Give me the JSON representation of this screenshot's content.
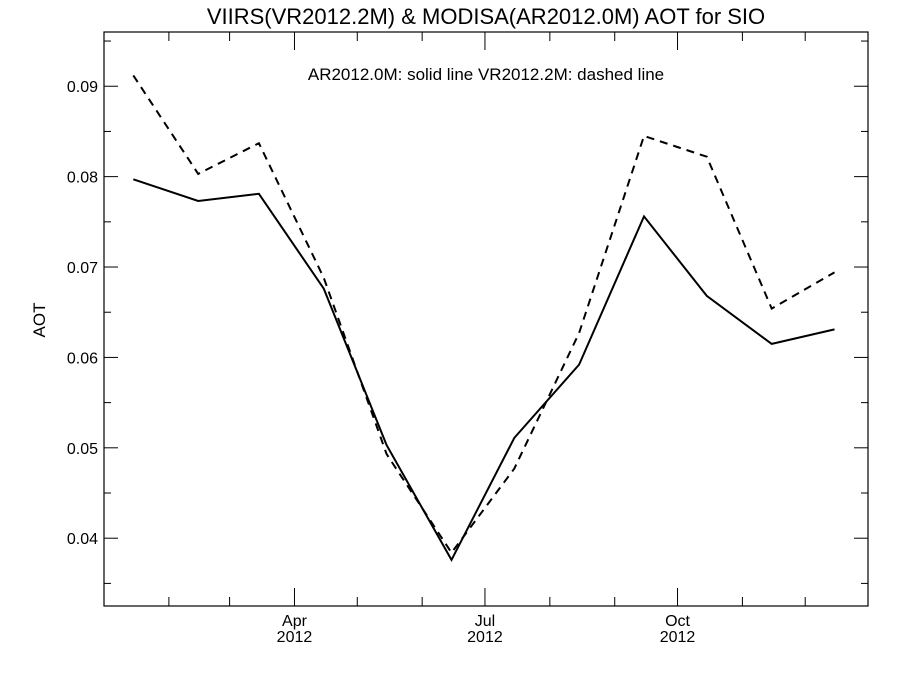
{
  "chart_data": {
    "type": "line",
    "title": "VIIRS(VR2012.2M) & MODISA(AR2012.0M)  AOT for SIO",
    "annotation": "AR2012.0M: solid line   VR2012.2M: dashed line",
    "xlabel": "",
    "ylabel": "AOT",
    "x_dates": [
      "2012-01-15",
      "2012-02-15",
      "2012-03-15",
      "2012-04-15",
      "2012-05-15",
      "2012-06-15",
      "2012-07-15",
      "2012-08-15",
      "2012-09-15",
      "2012-10-15",
      "2012-11-15",
      "2012-12-15"
    ],
    "xlim": [
      "2012-01-01",
      "2012-12-31"
    ],
    "x_ticks": [
      {
        "date": "2012-04-01",
        "label": "Apr",
        "sublabel": "2012"
      },
      {
        "date": "2012-07-01",
        "label": "Jul",
        "sublabel": "2012"
      },
      {
        "date": "2012-10-01",
        "label": "Oct",
        "sublabel": "2012"
      }
    ],
    "ylim": [
      0.0325,
      0.096
    ],
    "y_ticks": [
      "0.04",
      "0.05",
      "0.06",
      "0.07",
      "0.08",
      "0.09"
    ],
    "series": [
      {
        "name": "AR2012.0M",
        "style": "solid",
        "values": [
          0.0797,
          0.0773,
          0.0781,
          0.0676,
          0.0503,
          0.0376,
          0.0511,
          0.0592,
          0.0756,
          0.0668,
          0.0615,
          0.0631
        ]
      },
      {
        "name": "VR2012.2M",
        "style": "dashed",
        "values": [
          0.0912,
          0.0803,
          0.0837,
          0.0688,
          0.0493,
          0.0384,
          0.0477,
          0.0627,
          0.0845,
          0.0822,
          0.0654,
          0.0694
        ]
      }
    ],
    "grid": false,
    "color": "#000000"
  }
}
